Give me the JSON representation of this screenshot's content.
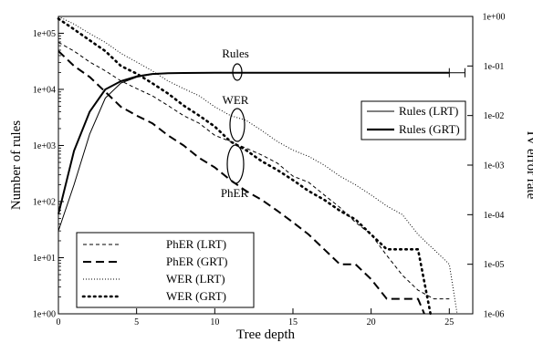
{
  "chart_data": {
    "type": "line",
    "xlabel": "Tree depth",
    "ylabel_left": "Number of rules",
    "ylabel_right": "IV error rate",
    "x_range": [
      0,
      26.5
    ],
    "y_left_range_log10": [
      0,
      5.3
    ],
    "y_right_range_log10": [
      -6,
      0
    ],
    "x_ticks": [
      "0",
      "5",
      "10",
      "15",
      "20",
      "25"
    ],
    "x_tick_values": [
      0,
      5,
      10,
      15,
      20,
      25
    ],
    "y_left_ticks": [
      "1e+00",
      "1e+01",
      "1e+02",
      "1e+03",
      "1e+04",
      "1e+05"
    ],
    "y_left_tick_values": [
      1,
      10,
      100,
      1000,
      10000,
      100000
    ],
    "y_right_ticks": [
      "1e-06",
      "1e-05",
      "1e-04",
      "1e-03",
      "1e-02",
      "1e-01",
      "1e+00"
    ],
    "y_right_tick_values": [
      1e-06,
      1e-05,
      0.0001,
      0.001,
      0.01,
      0.1,
      1
    ],
    "series": [
      {
        "name": "Rules (LRT)",
        "axis": "left",
        "style": "thin",
        "x": [
          0,
          1,
          2,
          3,
          4,
          5,
          6,
          7,
          8,
          10,
          12,
          14,
          16,
          18,
          20,
          22,
          24,
          25,
          26
        ],
        "y": [
          30,
          200,
          1600,
          7000,
          13000,
          16500,
          18500,
          19200,
          19500,
          19700,
          19800,
          19800,
          19800,
          19800,
          19800,
          19800,
          19800,
          19800,
          19800
        ]
      },
      {
        "name": "Rules (GRT)",
        "axis": "left",
        "style": "thick",
        "x": [
          0,
          1,
          2,
          3,
          4,
          5,
          6,
          7,
          8,
          10,
          12,
          14,
          16,
          18,
          20,
          22,
          24,
          25
        ],
        "y": [
          60,
          800,
          4000,
          10000,
          14000,
          17000,
          18800,
          19400,
          19600,
          19700,
          19800,
          19800,
          19800,
          19800,
          19800,
          19800,
          19800,
          19800
        ]
      },
      {
        "name": "PhER (LRT)",
        "axis": "right",
        "style": "dashed-thin",
        "x": [
          0,
          1,
          2,
          3,
          4,
          5,
          6,
          7,
          8,
          9,
          10,
          11,
          12,
          13,
          14,
          15,
          16,
          17,
          18,
          19,
          20,
          21,
          22,
          23,
          24,
          25
        ],
        "y": [
          0.3,
          0.2,
          0.12,
          0.08,
          0.05,
          0.035,
          0.025,
          0.016,
          0.01,
          0.007,
          0.004,
          0.003,
          0.0022,
          0.0016,
          0.0011,
          0.0006,
          0.00045,
          0.00025,
          0.00014,
          7e-05,
          4e-05,
          1.5e-05,
          6e-06,
          3e-06,
          2e-06,
          2e-06
        ]
      },
      {
        "name": "PhER (GRT)",
        "axis": "right",
        "style": "dashed-thick",
        "x": [
          0,
          1,
          2,
          3,
          4,
          5,
          6,
          7,
          8,
          9,
          10,
          11,
          12,
          13,
          14,
          15,
          16,
          17,
          18,
          19,
          20,
          21,
          22,
          23,
          23.4
        ],
        "y": [
          0.2,
          0.1,
          0.06,
          0.03,
          0.015,
          0.01,
          0.007,
          0.004,
          0.0025,
          0.0014,
          0.0009,
          0.0005,
          0.0003,
          0.0002,
          0.00012,
          7e-05,
          4e-05,
          2e-05,
          1e-05,
          1e-05,
          5e-06,
          2e-06,
          2e-06,
          2e-06,
          1e-06
        ]
      },
      {
        "name": "WER (LRT)",
        "axis": "right",
        "style": "dotted-thin",
        "x": [
          0,
          1,
          2,
          3,
          4,
          5,
          6,
          7,
          8,
          9,
          10,
          11,
          12,
          13,
          14,
          15,
          16,
          17,
          18,
          19,
          20,
          21,
          22,
          23,
          24,
          25,
          25.5
        ],
        "y": [
          1,
          0.7,
          0.45,
          0.3,
          0.18,
          0.12,
          0.08,
          0.05,
          0.035,
          0.025,
          0.015,
          0.01,
          0.008,
          0.005,
          0.003,
          0.002,
          0.0015,
          0.001,
          0.0006,
          0.0004,
          0.00025,
          0.00015,
          0.0001,
          4e-05,
          2e-05,
          1e-05,
          1e-06
        ]
      },
      {
        "name": "WER (GRT)",
        "axis": "right",
        "style": "dotted-thick",
        "x": [
          0,
          1,
          2,
          3,
          4,
          5,
          6,
          7,
          8,
          9,
          10,
          11,
          12,
          13,
          14,
          15,
          16,
          17,
          18,
          19,
          20,
          21,
          22,
          23,
          23.8
        ],
        "y": [
          0.9,
          0.55,
          0.33,
          0.2,
          0.1,
          0.07,
          0.045,
          0.028,
          0.016,
          0.01,
          0.006,
          0.003,
          0.002,
          0.0012,
          0.0008,
          0.0005,
          0.0003,
          0.0002,
          0.00012,
          8e-05,
          4e-05,
          2e-05,
          2e-05,
          2e-05,
          1e-06
        ]
      }
    ],
    "annotations": [
      "Rules",
      "WER",
      "PhER"
    ],
    "legends": [
      {
        "placement": "right",
        "entries": [
          "Rules (LRT)",
          "Rules (GRT)"
        ]
      },
      {
        "placement": "bottom-left",
        "entries": [
          "PhER (LRT)",
          "PhER (GRT)",
          "WER (LRT)",
          "WER (GRT)"
        ]
      }
    ],
    "grid": false
  }
}
